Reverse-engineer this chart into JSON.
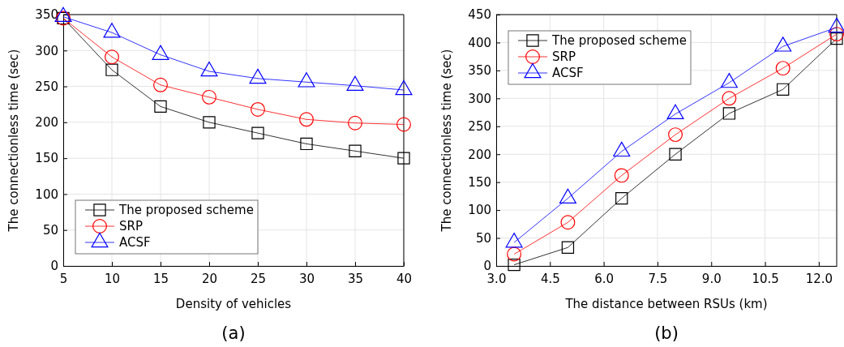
{
  "chart_data": [
    {
      "type": "line",
      "title": "(a)",
      "xlabel": "Density of vehicles",
      "ylabel": "The connectionless time (sec)",
      "x": [
        5,
        10,
        15,
        20,
        25,
        30,
        35,
        40
      ],
      "xlim": [
        5,
        40
      ],
      "xticks": [
        5,
        10,
        15,
        20,
        25,
        30,
        35,
        40
      ],
      "ylim": [
        0,
        350
      ],
      "yticks": [
        0,
        50,
        100,
        150,
        200,
        250,
        300,
        350
      ],
      "grid": true,
      "legend": "bottom left",
      "series": [
        {
          "name": "The proposed scheme",
          "color": "#000000",
          "marker": "square",
          "values": [
            345,
            273,
            222,
            200,
            185,
            170,
            160,
            150
          ]
        },
        {
          "name": "SRP",
          "color": "#ff0000",
          "marker": "circle",
          "values": [
            345,
            291,
            252,
            235,
            218,
            204,
            199,
            197
          ]
        },
        {
          "name": "ACSF",
          "color": "#0000ff",
          "marker": "triangle",
          "values": [
            347,
            325,
            294,
            271,
            261,
            256,
            251,
            245
          ]
        }
      ]
    },
    {
      "type": "line",
      "title": "(b)",
      "xlabel": "The distance between RSUs (km)",
      "ylabel": "The connectionless time (sec)",
      "x": [
        3.5,
        5,
        6.5,
        8,
        9.5,
        11,
        12.5
      ],
      "xlim": [
        3,
        12.5
      ],
      "xticks": [
        {
          "value": 3,
          "label": "3.0"
        },
        {
          "value": 4.5,
          "label": "4.5"
        },
        {
          "value": 6,
          "label": "6.0"
        },
        {
          "value": 7.5,
          "label": "7.5"
        },
        {
          "value": 9,
          "label": "9.0"
        },
        {
          "value": 10.5,
          "label": "10.5"
        },
        {
          "value": 12,
          "label": "12.0"
        }
      ],
      "ylim": [
        0,
        450
      ],
      "yticks": [
        0,
        50,
        100,
        150,
        200,
        250,
        300,
        350,
        400,
        450
      ],
      "grid": true,
      "legend": "top left",
      "series": [
        {
          "name": "The proposed scheme",
          "color": "#000000",
          "marker": "square",
          "values": [
            2,
            33,
            121,
            200,
            273,
            316,
            407
          ]
        },
        {
          "name": "SRP",
          "color": "#ff0000",
          "marker": "circle",
          "values": [
            21,
            78,
            162,
            235,
            300,
            354,
            415
          ]
        },
        {
          "name": "ACSF",
          "color": "#0000ff",
          "marker": "triangle",
          "values": [
            42,
            121,
            205,
            272,
            328,
            393,
            427
          ]
        }
      ]
    }
  ]
}
